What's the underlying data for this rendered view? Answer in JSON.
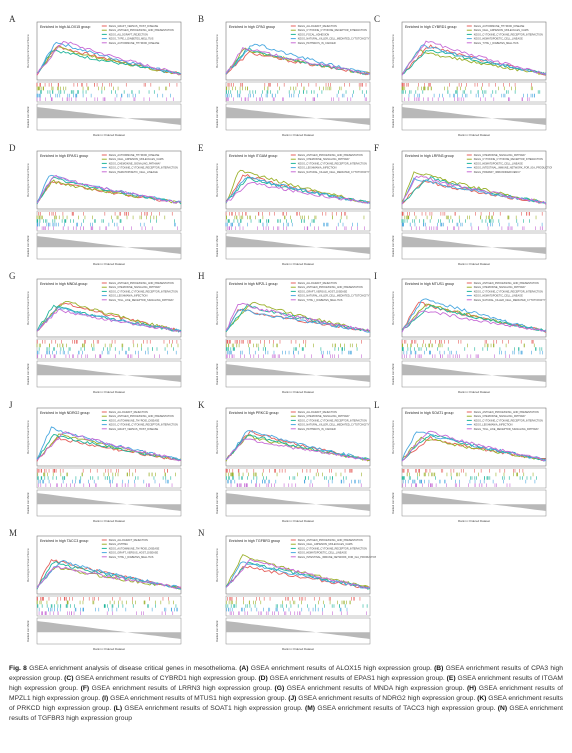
{
  "figure": {
    "panels": [
      {
        "letter": "A",
        "title": "Enriched in high ALOX15 group",
        "legend": [
          "KEGG_GRAFT_VERSUS_HOST_DISEASE",
          "KEGG_ANTIGEN_PROCESSING_AND_PRESENTATION",
          "KEGG_ALLOGRAFT_REJECTION",
          "KEGG_TYPE_I_DIABETES_MELLITUS",
          "KEGG_AUTOIMMUNE_THYROID_DISEASE"
        ]
      },
      {
        "letter": "B",
        "title": "Enriched in high CPA3 group",
        "legend": [
          "KEGG_ALLOGRAFT_REJECTION",
          "KEGG_CYTOKINE_CYTOKINE_RECEPTOR_INTERACTION",
          "KEGG_FOCAL_ADHESION",
          "KEGG_NATURAL_KILLER_CELL_MEDIATED_CYTOTOXICITY",
          "KEGG_PATHWAYS_IN_CANCER"
        ]
      },
      {
        "letter": "C",
        "title": "Enriched in high CYBRD1 group",
        "legend": [
          "KEGG_AUTOIMMUNE_THYROID_DISEASE",
          "KEGG_CELL_ADHESION_MOLECULES_CAMS",
          "KEGG_CYTOKINE_CYTOKINE_RECEPTOR_INTERACTION",
          "KEGG_HEMATOPOIETIC_CELL_LINEAGE",
          "KEGG_TYPE_I_DIABETES_MELLITUS"
        ]
      },
      {
        "letter": "D",
        "title": "Enriched in high EPAS1 group",
        "legend": [
          "KEGG_AUTOIMMUNE_THYROID_DISEASE",
          "KEGG_CELL_ADHESION_MOLECULES_CAMS",
          "KEGG_CHEMOKINE_SIGNALING_PATHWAY",
          "KEGG_CYTOKINE_CYTOKINE_RECEPTOR_INTERACTION",
          "KEGG_HEMATOPOIETIC_CELL_LINEAGE"
        ]
      },
      {
        "letter": "E",
        "title": "Enriched in high ITGAM group",
        "legend": [
          "KEGG_ANTIGEN_PROCESSING_AND_PRESENTATION",
          "KEGG_CHEMOKINE_SIGNALING_PATHWAY",
          "KEGG_CYTOKINE_CYTOKINE_RECEPTOR_INTERACTION",
          "KEGG_LEISHMANIA_INFECTION",
          "KEGG_NATURAL_KILLER_CELL_MEDIATED_CYTOTOXICITY"
        ]
      },
      {
        "letter": "F",
        "title": "Enriched in high LRRN3 group",
        "legend": [
          "KEGG_CHEMOKINE_SIGNALING_PATHWAY",
          "KEGG_CYTOKINE_CYTOKINE_RECEPTOR_INTERACTION",
          "KEGG_HEMATOPOIETIC_CELL_LINEAGE",
          "KEGG_INTESTINAL_IMMUNE_NETWORK_FOR_IGA_PRODUCTION",
          "KEGG_PRIMARY_IMMUNODEFICIENCY"
        ]
      },
      {
        "letter": "G",
        "title": "Enriched in high MNDA group",
        "legend": [
          "KEGG_ANTIGEN_PROCESSING_AND_PRESENTATION",
          "KEGG_CHEMOKINE_SIGNALING_PATHWAY",
          "KEGG_CYTOKINE_CYTOKINE_RECEPTOR_INTERACTION",
          "KEGG_LEISHMANIA_INFECTION",
          "KEGG_TOLL_LIKE_RECEPTOR_SIGNALING_PATHWAY"
        ]
      },
      {
        "letter": "H",
        "title": "Enriched in high MPZL1 group",
        "legend": [
          "KEGG_ALLOGRAFT_REJECTION",
          "KEGG_ANTIGEN_PROCESSING_AND_PRESENTATION",
          "KEGG_GRAFT_VERSUS_HOST_DISEASE",
          "KEGG_NATURAL_KILLER_CELL_MEDIATED_CYTOTOXICITY",
          "KEGG_TYPE_I_DIABETES_MELLITUS"
        ]
      },
      {
        "letter": "I",
        "title": "Enriched in high MTUS1 group",
        "legend": [
          "KEGG_ANTIGEN_PROCESSING_AND_PRESENTATION",
          "KEGG_CHEMOKINE_SIGNALING_PATHWAY",
          "KEGG_CYTOKINE_CYTOKINE_RECEPTOR_INTERACTION",
          "KEGG_HEMATOPOIETIC_CELL_LINEAGE",
          "KEGG_NATURAL_KILLER_CELL_MEDIATED_CYTOTOXICITY"
        ]
      },
      {
        "letter": "J",
        "title": "Enriched in high NDRG2 group",
        "legend": [
          "KEGG_ALLOGRAFT_REJECTION",
          "KEGG_ANTIGEN_PROCESSING_AND_PRESENTATION",
          "KEGG_AUTOIMMUNE_THYROID_DISEASE",
          "KEGG_CYTOKINE_CYTOKINE_RECEPTOR_INTERACTION",
          "KEGG_GRAFT_VERSUS_HOST_DISEASE"
        ]
      },
      {
        "letter": "K",
        "title": "Enriched in high PRKCD group",
        "legend": [
          "KEGG_ALLOGRAFT_REJECTION",
          "KEGG_CHEMOKINE_SIGNALING_PATHWAY",
          "KEGG_CYTOKINE_CYTOKINE_RECEPTOR_INTERACTION",
          "KEGG_NATURAL_KILLER_CELL_MEDIATED_CYTOTOXICITY",
          "KEGG_PATHWAYS_IN_CANCER"
        ]
      },
      {
        "letter": "L",
        "title": "Enriched in high SOAT1 group",
        "legend": [
          "KEGG_ANTIGEN_PROCESSING_AND_PRESENTATION",
          "KEGG_CHEMOKINE_SIGNALING_PATHWAY",
          "KEGG_CYTOKINE_CYTOKINE_RECEPTOR_INTERACTION",
          "KEGG_LEISHMANIA_INFECTION",
          "KEGG_TOLL_LIKE_RECEPTOR_SIGNALING_PATHWAY"
        ]
      },
      {
        "letter": "M",
        "title": "Enriched in high TACC3 group",
        "legend": [
          "KEGG_ALLOGRAFT_REJECTION",
          "KEGG_ASTHMA",
          "KEGG_AUTOIMMUNE_THYROID_DISEASE",
          "KEGG_GRAFT_VERSUS_HOST_DISEASE",
          "KEGG_TYPE_I_DIABETES_MELLITUS"
        ]
      },
      {
        "letter": "N",
        "title": "Enriched in high TGFBR3 group",
        "legend": [
          "KEGG_ANTIGEN_PROCESSING_AND_PRESENTATION",
          "KEGG_CELL_ADHESION_MOLECULES_CAMS",
          "KEGG_CYTOKINE_CYTOKINE_RECEPTOR_INTERACTION",
          "KEGG_HEMATOPOIETIC_CELL_LINEAGE",
          "KEGG_INTESTINAL_IMMUNE_NETWORK_FOR_IGA_PRODUCTION"
        ]
      }
    ],
    "ylabel_top": "Running Enrichment Score",
    "ylabel_bottom": "Ranked List Metric",
    "xlabel": "Rank in Ordered Dataset",
    "series_colors": [
      "#e5605d",
      "#9cb12c",
      "#1fb59b",
      "#4aa8e0",
      "#c76bd6"
    ]
  },
  "caption": {
    "label": "Fig. 8",
    "intro": " GSEA enrichment analysis of disease critical genes in mesothelioma. ",
    "parts": [
      {
        "letter": "(A)",
        "text": " GSEA enrichment results of ALOX15 high expression group. "
      },
      {
        "letter": "(B)",
        "text": " GSEA enrichment results of CPA3 high expression group. "
      },
      {
        "letter": "(C)",
        "text": " GSEA enrichment results of CYBRD1 high expression group. "
      },
      {
        "letter": "(D)",
        "text": " GSEA enrichment results of EPAS1 high expression group. "
      },
      {
        "letter": "(E)",
        "text": " GSEA enrichment results of ITGAM high expression group. "
      },
      {
        "letter": "(F)",
        "text": " GSEA enrichment results of LRRN3 high expression group. "
      },
      {
        "letter": "(G)",
        "text": " GSEA enrichment results of MNDA high expression group. "
      },
      {
        "letter": "(H)",
        "text": " GSEA enrichment results of MPZL1 high expression group. "
      },
      {
        "letter": "(I)",
        "text": " GSEA enrichment results of MTUS1 high expression group. "
      },
      {
        "letter": "(J)",
        "text": " GSEA enrichment results of NDRG2 high expression group. "
      },
      {
        "letter": "(K)",
        "text": " GSEA enrichment results of PRKCD high expression group. "
      },
      {
        "letter": "(L)",
        "text": " GSEA enrichment results of SOAT1 high expression group. "
      },
      {
        "letter": "(M)",
        "text": " GSEA enrichment results of TACC3 high expression group. "
      },
      {
        "letter": "(N)",
        "text": " GSEA enrichment results of TGFBR3 high expression group"
      }
    ]
  }
}
